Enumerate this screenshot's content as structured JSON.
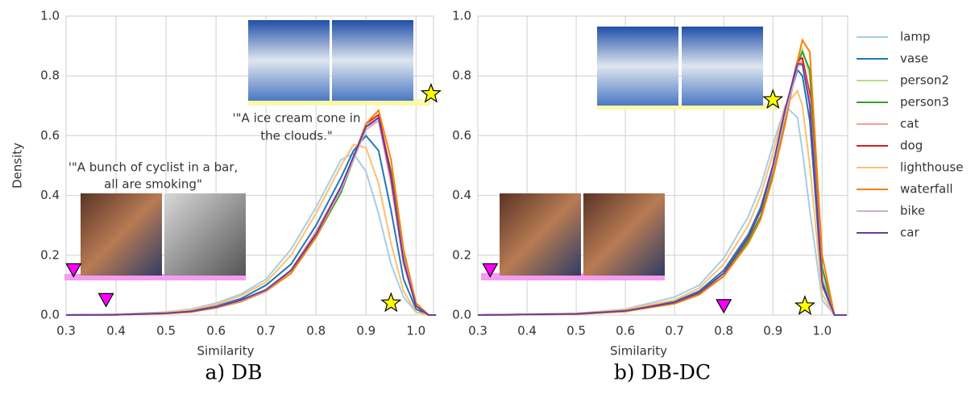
{
  "chart_data": [
    {
      "type": "line",
      "caption": "a) DB",
      "x_label": "Similarity",
      "y_label": "Density",
      "xlim": [
        0.3,
        1.035
      ],
      "ylim": [
        0,
        1
      ],
      "xticks": [
        0.3,
        0.4,
        0.5,
        0.6,
        0.7,
        0.8,
        0.9,
        {
          "value": 1,
          "label": "1.0"
        }
      ],
      "yticks": [
        {
          "value": 0,
          "label": "0.0"
        },
        0.2,
        0.4,
        0.6,
        0.8,
        {
          "value": 1,
          "label": "1.0"
        }
      ],
      "grid": true,
      "x": [
        0.3,
        0.4,
        0.5,
        0.55,
        0.6,
        0.65,
        0.7,
        0.75,
        0.8,
        0.85,
        0.875,
        0.9,
        0.925,
        0.95,
        0.975,
        1.0,
        1.025,
        1.04
      ],
      "series": [
        {
          "name": "lamp",
          "color": "#a6cee3",
          "values": [
            0,
            0.002,
            0.01,
            0.02,
            0.04,
            0.07,
            0.12,
            0.22,
            0.36,
            0.52,
            0.54,
            0.48,
            0.34,
            0.17,
            0.06,
            0.01,
            0,
            0
          ]
        },
        {
          "name": "vase",
          "color": "#1f78b4",
          "values": [
            0,
            0.002,
            0.008,
            0.015,
            0.03,
            0.055,
            0.1,
            0.17,
            0.3,
            0.46,
            0.55,
            0.6,
            0.55,
            0.35,
            0.12,
            0.02,
            0,
            0
          ]
        },
        {
          "name": "person2",
          "color": "#b2df8a",
          "values": [
            0,
            0.001,
            0.006,
            0.012,
            0.025,
            0.045,
            0.08,
            0.15,
            0.27,
            0.42,
            0.53,
            0.63,
            0.66,
            0.45,
            0.18,
            0.03,
            0,
            0
          ]
        },
        {
          "name": "person3",
          "color": "#33a02c",
          "values": [
            0,
            0.001,
            0.006,
            0.012,
            0.025,
            0.045,
            0.08,
            0.14,
            0.26,
            0.41,
            0.52,
            0.63,
            0.66,
            0.48,
            0.2,
            0.04,
            0,
            0
          ]
        },
        {
          "name": "cat",
          "color": "#fb9a99",
          "values": [
            0,
            0.001,
            0.006,
            0.012,
            0.028,
            0.05,
            0.085,
            0.15,
            0.28,
            0.43,
            0.53,
            0.63,
            0.65,
            0.44,
            0.17,
            0.03,
            0,
            0
          ]
        },
        {
          "name": "dog",
          "color": "#e31a1c",
          "values": [
            0,
            0.001,
            0.006,
            0.012,
            0.026,
            0.047,
            0.082,
            0.15,
            0.27,
            0.42,
            0.52,
            0.64,
            0.67,
            0.47,
            0.19,
            0.03,
            0,
            0
          ]
        },
        {
          "name": "lighthouse",
          "color": "#fdbf6f",
          "values": [
            0,
            0.002,
            0.009,
            0.018,
            0.035,
            0.065,
            0.11,
            0.2,
            0.34,
            0.5,
            0.57,
            0.56,
            0.44,
            0.24,
            0.08,
            0.01,
            0,
            0
          ]
        },
        {
          "name": "waterfall",
          "color": "#ff7f00",
          "values": [
            0,
            0.001,
            0.005,
            0.01,
            0.024,
            0.045,
            0.08,
            0.14,
            0.26,
            0.42,
            0.53,
            0.64,
            0.685,
            0.52,
            0.22,
            0.04,
            0,
            0
          ]
        },
        {
          "name": "bike",
          "color": "#cab2d6",
          "values": [
            0,
            0.001,
            0.006,
            0.012,
            0.026,
            0.048,
            0.083,
            0.15,
            0.27,
            0.42,
            0.52,
            0.62,
            0.65,
            0.46,
            0.19,
            0.03,
            0,
            0
          ]
        },
        {
          "name": "car",
          "color": "#6a3d9a",
          "values": [
            0,
            0.001,
            0.006,
            0.012,
            0.027,
            0.05,
            0.085,
            0.15,
            0.27,
            0.43,
            0.53,
            0.63,
            0.66,
            0.46,
            0.18,
            0.03,
            0,
            0
          ]
        }
      ],
      "markers": [
        {
          "shape": "triangle",
          "x": 0.38,
          "y": 0.05,
          "color": "#ff00ff"
        },
        {
          "shape": "star",
          "x": 0.95,
          "y": 0.04,
          "color": "#ffff00"
        },
        {
          "shape": "triangle",
          "x": 0.315,
          "y": 0.15,
          "color": "#ff00ff"
        },
        {
          "shape": "star",
          "x": 1.03,
          "y": 0.74,
          "color": "#ffff00"
        }
      ],
      "annotations": [
        {
          "lines": [
            "'\"A bunch of cyclist in a bar,",
            "all are smoking\""
          ]
        },
        {
          "lines": [
            "'\"A ice cream cone in",
            "the clouds.\""
          ]
        }
      ]
    },
    {
      "type": "line",
      "caption": "b) DB-DC",
      "x_label": "Similarity",
      "xlim": [
        0.3,
        1.052
      ],
      "ylim": [
        0,
        1
      ],
      "xticks": [
        0.3,
        0.4,
        0.5,
        0.6,
        0.7,
        0.8,
        0.9,
        {
          "value": 1,
          "label": "1.0"
        }
      ],
      "yticks": [
        {
          "value": 0,
          "label": "0.0"
        },
        0.2,
        0.4,
        0.6,
        0.8,
        {
          "value": 1,
          "label": "1.0"
        }
      ],
      "grid": true,
      "legend": "outside right",
      "x": [
        0.3,
        0.5,
        0.6,
        0.7,
        0.75,
        0.8,
        0.85,
        0.875,
        0.9,
        0.925,
        0.95,
        0.96,
        0.975,
        1.0,
        1.025,
        1.05
      ],
      "series": [
        {
          "name": "lamp",
          "color": "#a6cee3",
          "values": [
            0,
            0.005,
            0.02,
            0.06,
            0.1,
            0.19,
            0.33,
            0.43,
            0.57,
            0.7,
            0.66,
            0.55,
            0.35,
            0.05,
            0,
            0
          ]
        },
        {
          "name": "vase",
          "color": "#1f78b4",
          "values": [
            0,
            0.004,
            0.015,
            0.045,
            0.08,
            0.15,
            0.27,
            0.36,
            0.5,
            0.68,
            0.82,
            0.8,
            0.65,
            0.1,
            0,
            0
          ]
        },
        {
          "name": "person2",
          "color": "#b2df8a",
          "values": [
            0,
            0.003,
            0.012,
            0.04,
            0.07,
            0.13,
            0.25,
            0.33,
            0.47,
            0.65,
            0.85,
            0.89,
            0.8,
            0.15,
            0,
            0
          ]
        },
        {
          "name": "person3",
          "color": "#33a02c",
          "values": [
            0,
            0.003,
            0.012,
            0.04,
            0.07,
            0.13,
            0.25,
            0.33,
            0.47,
            0.65,
            0.84,
            0.88,
            0.82,
            0.16,
            0,
            0
          ]
        },
        {
          "name": "cat",
          "color": "#fb9a99",
          "values": [
            0,
            0.004,
            0.014,
            0.042,
            0.075,
            0.14,
            0.26,
            0.35,
            0.49,
            0.67,
            0.84,
            0.85,
            0.74,
            0.12,
            0,
            0
          ]
        },
        {
          "name": "dog",
          "color": "#e31a1c",
          "values": [
            0,
            0.004,
            0.014,
            0.042,
            0.075,
            0.14,
            0.26,
            0.35,
            0.49,
            0.68,
            0.85,
            0.86,
            0.74,
            0.12,
            0,
            0
          ]
        },
        {
          "name": "lighthouse",
          "color": "#fdbf6f",
          "values": [
            0,
            0.005,
            0.018,
            0.05,
            0.09,
            0.17,
            0.3,
            0.4,
            0.54,
            0.7,
            0.75,
            0.7,
            0.5,
            0.07,
            0,
            0
          ]
        },
        {
          "name": "waterfall",
          "color": "#ff7f00",
          "values": [
            0,
            0.003,
            0.012,
            0.038,
            0.068,
            0.13,
            0.24,
            0.32,
            0.46,
            0.64,
            0.85,
            0.92,
            0.88,
            0.2,
            0,
            0
          ]
        },
        {
          "name": "bike",
          "color": "#cab2d6",
          "values": [
            0,
            0.004,
            0.014,
            0.042,
            0.075,
            0.14,
            0.26,
            0.35,
            0.49,
            0.67,
            0.83,
            0.84,
            0.72,
            0.12,
            0,
            0
          ]
        },
        {
          "name": "car",
          "color": "#6a3d9a",
          "values": [
            0,
            0.004,
            0.014,
            0.042,
            0.075,
            0.14,
            0.26,
            0.35,
            0.5,
            0.69,
            0.84,
            0.84,
            0.7,
            0.11,
            0,
            0
          ]
        }
      ],
      "markers": [
        {
          "shape": "triangle",
          "x": 0.8,
          "y": 0.03,
          "color": "#ff00ff"
        },
        {
          "shape": "star",
          "x": 0.965,
          "y": 0.03,
          "color": "#ffff00"
        },
        {
          "shape": "triangle",
          "x": 0.325,
          "y": 0.15,
          "color": "#ff00ff"
        },
        {
          "shape": "star",
          "x": 0.9,
          "y": 0.72,
          "color": "#ffff00"
        }
      ]
    }
  ]
}
